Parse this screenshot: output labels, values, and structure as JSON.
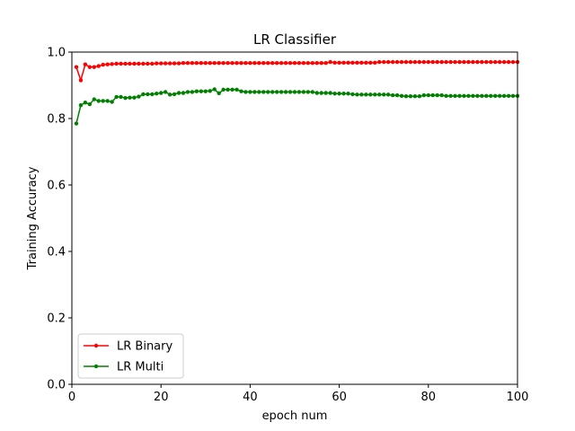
{
  "chart_data": {
    "type": "line",
    "title": "LR Classifier",
    "xlabel": "epoch num",
    "ylabel": "Training Accuracy",
    "xlim": [
      0,
      100
    ],
    "ylim": [
      0.0,
      1.0
    ],
    "xticks": [
      "0",
      "20",
      "40",
      "60",
      "80",
      "100"
    ],
    "yticks": [
      "0.0",
      "0.2",
      "0.4",
      "0.6",
      "0.8",
      "1.0"
    ],
    "grid": false,
    "legend_position": "lower-left",
    "series": [
      {
        "name": "LR Binary",
        "color": "#ff0000",
        "marker": "circle",
        "x": [
          1,
          2,
          3,
          4,
          5,
          6,
          7,
          8,
          9,
          10,
          11,
          12,
          13,
          14,
          15,
          16,
          17,
          18,
          19,
          20,
          21,
          22,
          23,
          24,
          25,
          26,
          27,
          28,
          29,
          30,
          31,
          32,
          33,
          34,
          35,
          36,
          37,
          38,
          39,
          40,
          41,
          42,
          43,
          44,
          45,
          46,
          47,
          48,
          49,
          50,
          51,
          52,
          53,
          54,
          55,
          56,
          57,
          58,
          59,
          60,
          61,
          62,
          63,
          64,
          65,
          66,
          67,
          68,
          69,
          70,
          71,
          72,
          73,
          74,
          75,
          76,
          77,
          78,
          79,
          80,
          81,
          82,
          83,
          84,
          85,
          86,
          87,
          88,
          89,
          90,
          91,
          92,
          93,
          94,
          95,
          96,
          97,
          98,
          99,
          100
        ],
        "values": [
          0.955,
          0.915,
          0.963,
          0.955,
          0.955,
          0.958,
          0.962,
          0.963,
          0.964,
          0.965,
          0.965,
          0.965,
          0.965,
          0.965,
          0.965,
          0.965,
          0.965,
          0.965,
          0.966,
          0.966,
          0.966,
          0.966,
          0.966,
          0.966,
          0.967,
          0.967,
          0.967,
          0.967,
          0.967,
          0.967,
          0.967,
          0.967,
          0.967,
          0.967,
          0.967,
          0.967,
          0.967,
          0.967,
          0.967,
          0.967,
          0.967,
          0.967,
          0.967,
          0.967,
          0.967,
          0.967,
          0.967,
          0.967,
          0.967,
          0.967,
          0.967,
          0.967,
          0.967,
          0.967,
          0.967,
          0.967,
          0.967,
          0.97,
          0.968,
          0.968,
          0.968,
          0.968,
          0.968,
          0.968,
          0.968,
          0.968,
          0.968,
          0.968,
          0.97,
          0.97,
          0.97,
          0.97,
          0.97,
          0.97,
          0.97,
          0.97,
          0.97,
          0.97,
          0.97,
          0.97,
          0.97,
          0.97,
          0.97,
          0.97,
          0.97,
          0.97,
          0.97,
          0.97,
          0.97,
          0.97,
          0.97,
          0.97,
          0.97,
          0.97,
          0.97,
          0.97,
          0.97,
          0.97,
          0.97,
          0.97
        ]
      },
      {
        "name": "LR Multi",
        "color": "#008000",
        "marker": "circle",
        "x": [
          1,
          2,
          3,
          4,
          5,
          6,
          7,
          8,
          9,
          10,
          11,
          12,
          13,
          14,
          15,
          16,
          17,
          18,
          19,
          20,
          21,
          22,
          23,
          24,
          25,
          26,
          27,
          28,
          29,
          30,
          31,
          32,
          33,
          34,
          35,
          36,
          37,
          38,
          39,
          40,
          41,
          42,
          43,
          44,
          45,
          46,
          47,
          48,
          49,
          50,
          51,
          52,
          53,
          54,
          55,
          56,
          57,
          58,
          59,
          60,
          61,
          62,
          63,
          64,
          65,
          66,
          67,
          68,
          69,
          70,
          71,
          72,
          73,
          74,
          75,
          76,
          77,
          78,
          79,
          80,
          81,
          82,
          83,
          84,
          85,
          86,
          87,
          88,
          89,
          90,
          91,
          92,
          93,
          94,
          95,
          96,
          97,
          98,
          99,
          100
        ],
        "values": [
          0.785,
          0.84,
          0.848,
          0.843,
          0.858,
          0.853,
          0.853,
          0.853,
          0.85,
          0.865,
          0.865,
          0.862,
          0.863,
          0.863,
          0.866,
          0.873,
          0.873,
          0.873,
          0.875,
          0.877,
          0.88,
          0.872,
          0.873,
          0.877,
          0.877,
          0.88,
          0.88,
          0.882,
          0.882,
          0.882,
          0.883,
          0.888,
          0.876,
          0.887,
          0.887,
          0.887,
          0.887,
          0.882,
          0.88,
          0.88,
          0.88,
          0.88,
          0.88,
          0.88,
          0.88,
          0.88,
          0.88,
          0.88,
          0.88,
          0.88,
          0.88,
          0.88,
          0.88,
          0.88,
          0.877,
          0.877,
          0.877,
          0.877,
          0.875,
          0.875,
          0.875,
          0.875,
          0.873,
          0.872,
          0.872,
          0.872,
          0.872,
          0.872,
          0.872,
          0.872,
          0.872,
          0.87,
          0.87,
          0.868,
          0.867,
          0.867,
          0.867,
          0.867,
          0.87,
          0.87,
          0.87,
          0.87,
          0.87,
          0.868,
          0.868,
          0.868,
          0.868,
          0.868,
          0.868,
          0.868,
          0.868,
          0.868,
          0.868,
          0.868,
          0.868,
          0.868,
          0.868,
          0.868,
          0.868,
          0.868
        ]
      }
    ]
  }
}
